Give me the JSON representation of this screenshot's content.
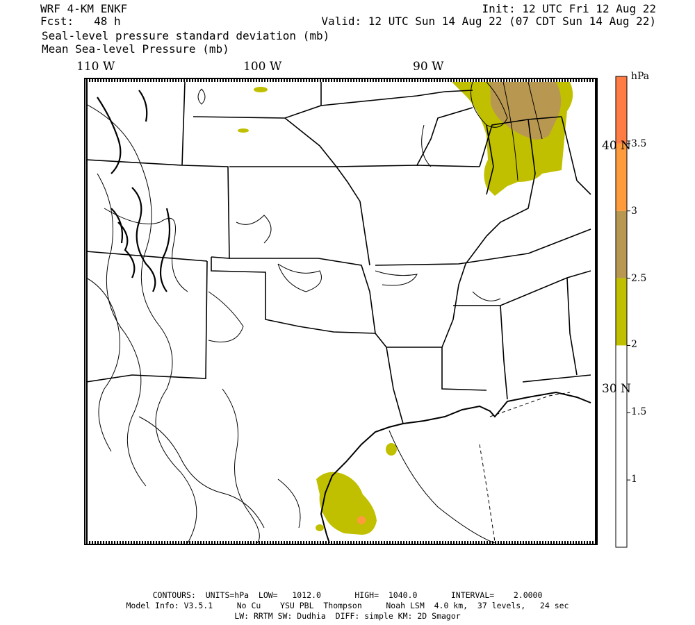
{
  "header": {
    "model": "WRF 4-KM ENKF",
    "fcst": "Fcst:   48 h",
    "init": "Init: 12 UTC Fri 12 Aug 22",
    "valid": "Valid: 12 UTC Sun 14 Aug 22 (07 CDT Sun 14 Aug 22)",
    "field1": "Seal-level pressure standard deviation (mb)",
    "field2": "Mean Sea-level Pressure (mb)"
  },
  "axes": {
    "lon_labels": [
      "110 W",
      "100 W",
      "90 W"
    ],
    "lat_labels": [
      "40 N",
      "30 N"
    ]
  },
  "legend": {
    "unit": "hPa",
    "bands": [
      {
        "from": 0,
        "to": 2,
        "color": "#ffffff"
      },
      {
        "from": 2,
        "to": 2.5,
        "color": "#c0c000"
      },
      {
        "from": 2.5,
        "to": 3,
        "color": "#b89850"
      },
      {
        "from": 3,
        "to": 3.5,
        "color": "#ff9b3c"
      },
      {
        "from": 3.5,
        "to": 4,
        "color": "#ff7d44"
      }
    ],
    "ticks": [
      "1",
      "1.5",
      "2",
      "2.5",
      "3",
      "3.5"
    ]
  },
  "footer": {
    "line1": "CONTOURS:  UNITS=hPa  LOW=   1012.0       HIGH=  1040.0       INTERVAL=    2.0000",
    "line2": "Model Info: V3.5.1     No Cu    YSU PBL  Thompson     Noah LSM  4.0 km,  37 levels,   24 sec",
    "line3": "LW: RRTM SW: Dudhia  DIFF: simple KM: 2D Smagor"
  },
  "colors": {
    "olive": "#c0c000",
    "tan": "#b89850",
    "orange": "#ff9b3c",
    "contour": "#000000"
  }
}
